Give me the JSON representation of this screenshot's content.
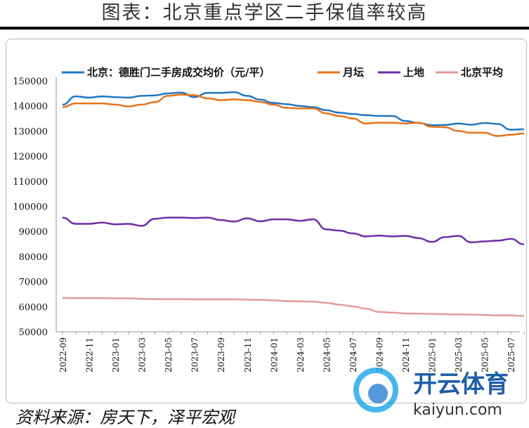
{
  "title": "图表：北京重点学区二手保值率较高",
  "source": "资料来源：房天下，泽平宏观",
  "watermark": {
    "text": "开云体育",
    "sub": "kaiyun.com"
  },
  "chart_data": {
    "type": "line",
    "title": "图表：北京重点学区二手保值率较高",
    "xlabel": "",
    "ylabel": "",
    "ylim": [
      50000,
      150000
    ],
    "yticks": [
      50000,
      60000,
      70000,
      80000,
      90000,
      100000,
      110000,
      120000,
      130000,
      140000,
      150000
    ],
    "legend_position": "top",
    "x": [
      "2022-09",
      "2022-10",
      "2022-11",
      "2022-12",
      "2023-01",
      "2023-02",
      "2023-03",
      "2023-04",
      "2023-05",
      "2023-06",
      "2023-07",
      "2023-08",
      "2023-09",
      "2023-10",
      "2023-11",
      "2023-12",
      "2024-01",
      "2024-02",
      "2024-03",
      "2024-04",
      "2024-05",
      "2024-06",
      "2024-07",
      "2024-08",
      "2024-09",
      "2024-10",
      "2024-11",
      "2024-12",
      "2025-01",
      "2025-02",
      "2025-03",
      "2025-04",
      "2025-05",
      "2025-06",
      "2025-07",
      "2025-08"
    ],
    "xtick_labels": [
      "2022-09",
      "2022-11",
      "2023-01",
      "2023-03",
      "2023-05",
      "2023-07",
      "2023-09",
      "2023-11",
      "2024-01",
      "2024-03",
      "2024-05",
      "2024-07",
      "2024-09",
      "2024-11",
      "2025-01",
      "2025-03",
      "2025-05",
      "2025-07"
    ],
    "series": [
      {
        "name": "北京：德胜门二手房成交均价（元/平）",
        "color": "#1f77c4",
        "values": [
          140500,
          143800,
          143300,
          143800,
          143500,
          143300,
          144000,
          144200,
          145000,
          145300,
          143500,
          145200,
          145200,
          145500,
          144000,
          142500,
          141200,
          140700,
          140000,
          139500,
          138300,
          137300,
          136800,
          136300,
          136000,
          136000,
          134000,
          133200,
          132300,
          132400,
          133000,
          132500,
          133200,
          132800,
          130500,
          130700
        ]
      },
      {
        "name": "月坛",
        "color": "#e8731a",
        "values": [
          139500,
          141000,
          141000,
          141000,
          140500,
          139800,
          140500,
          141500,
          144000,
          144500,
          144300,
          143000,
          142300,
          142600,
          142300,
          141600,
          140500,
          139200,
          139000,
          139000,
          137000,
          136000,
          135000,
          133000,
          133300,
          133300,
          133000,
          133300,
          131700,
          131500,
          130000,
          129300,
          129300,
          128000,
          128500,
          129000
        ]
      },
      {
        "name": "上地",
        "color": "#6f2da8",
        "values": [
          95500,
          93000,
          93000,
          93500,
          92800,
          93000,
          92200,
          95000,
          95500,
          95500,
          95300,
          95500,
          94500,
          93900,
          95200,
          94000,
          94800,
          94800,
          94200,
          94800,
          90800,
          90300,
          89200,
          88000,
          88300,
          88000,
          88200,
          87300,
          85800,
          87700,
          88200,
          85600,
          86000,
          86300,
          87000,
          84800
        ]
      },
      {
        "name": "北京平均",
        "color": "#e39a98",
        "values": [
          63500,
          63400,
          63400,
          63400,
          63300,
          63300,
          63100,
          63000,
          63000,
          63000,
          62900,
          62900,
          62900,
          62900,
          62800,
          62700,
          62500,
          62200,
          62100,
          62000,
          61500,
          60800,
          60100,
          59200,
          57900,
          57600,
          57300,
          57200,
          57100,
          57000,
          56900,
          56800,
          56700,
          56500,
          56500,
          56300
        ]
      }
    ]
  }
}
